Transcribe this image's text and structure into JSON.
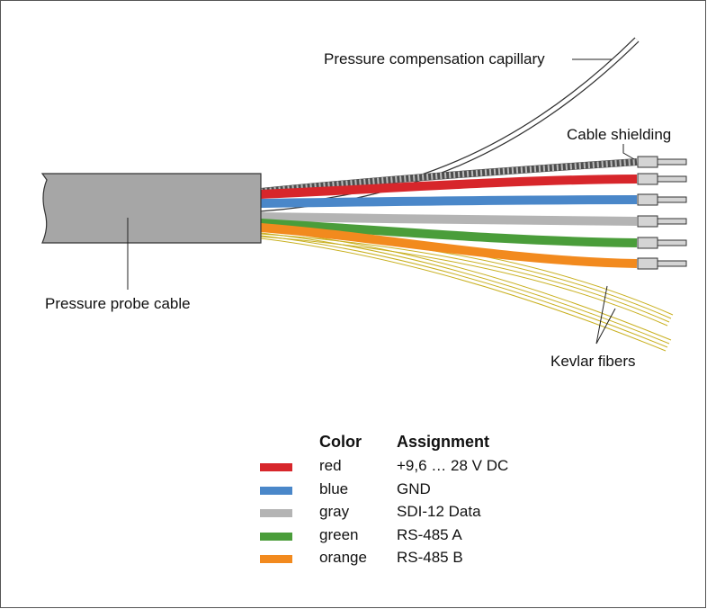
{
  "labels": {
    "capillary": "Pressure compensation capillary",
    "shielding": "Cable shielding",
    "probe_cable": "Pressure probe cable",
    "kevlar": "Kevlar fibers"
  },
  "legend": {
    "header_color": "Color",
    "header_assignment": "Assignment",
    "rows": [
      {
        "color_name": "red",
        "assignment": "+9,6 … 28 V DC",
        "hex": "#d7262b"
      },
      {
        "color_name": "blue",
        "assignment": "GND",
        "hex": "#4a87c9"
      },
      {
        "color_name": "gray",
        "assignment": "SDI-12 Data",
        "hex": "#b4b4b4"
      },
      {
        "color_name": "green",
        "assignment": "RS-485 A",
        "hex": "#4a9d3a"
      },
      {
        "color_name": "orange",
        "assignment": "RS-485 B",
        "hex": "#f28a1e"
      }
    ]
  },
  "colors": {
    "cable_jacket": "#a6a6a6",
    "shield": "#555555",
    "kevlar": "#c9b020",
    "ferrule": "#c8c8c8"
  }
}
